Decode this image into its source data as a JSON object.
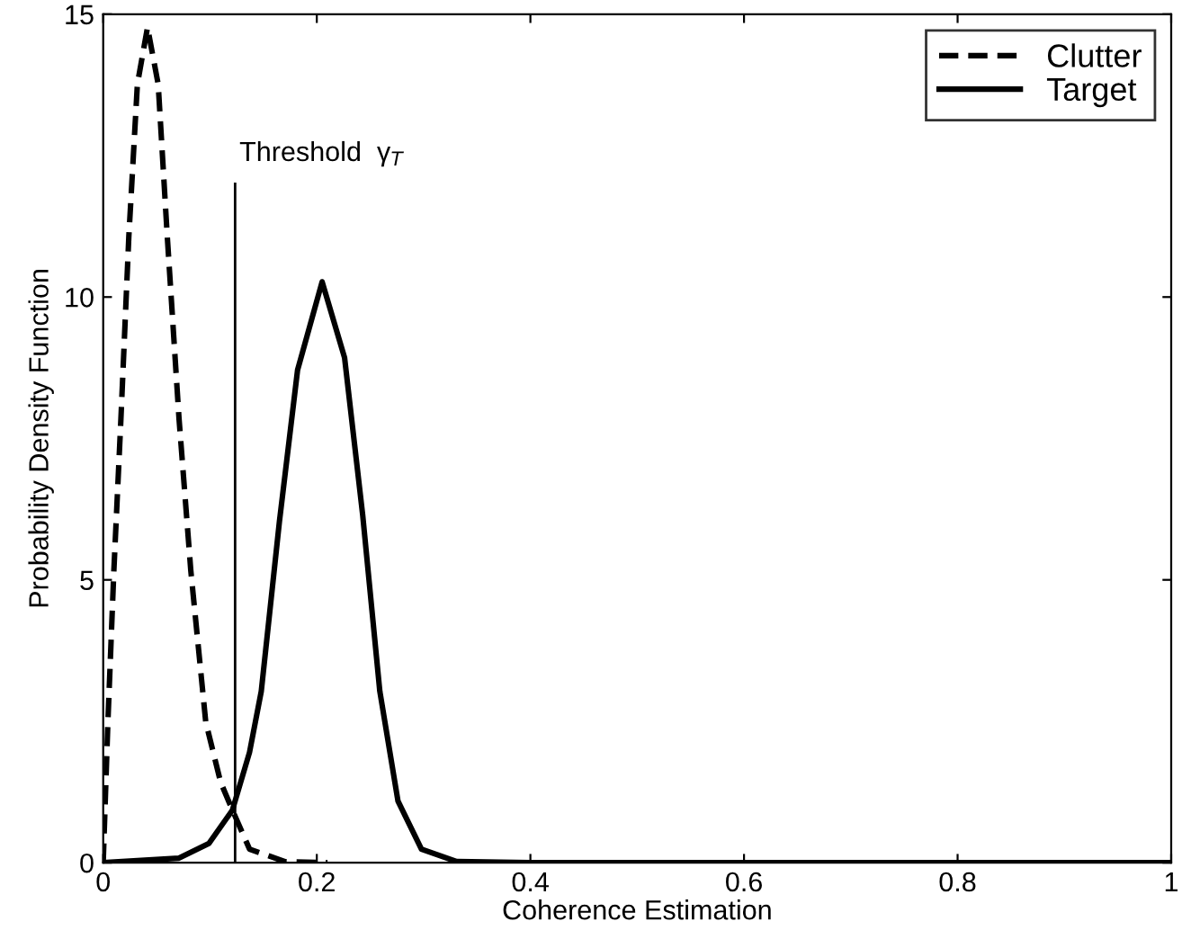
{
  "chart_data": {
    "type": "line",
    "xlabel": "Coherence Estimation",
    "ylabel": "Probability Density Function",
    "xlim": [
      0,
      1
    ],
    "ylim": [
      0,
      15
    ],
    "xticks": [
      0,
      0.2,
      0.4,
      0.6,
      0.8,
      1
    ],
    "yticks": [
      0,
      5,
      10,
      15
    ],
    "grid": false,
    "legend": "top right",
    "marker": "none",
    "series": [
      {
        "name": "Clutter",
        "color": "#000000",
        "line_style": "dashed",
        "x": [
          0,
          0.0044,
          0.01,
          0.0166,
          0.024,
          0.032,
          0.0415,
          0.0515,
          0.06,
          0.071,
          0.082,
          0.096,
          0.11,
          0.121,
          0.137,
          0.17,
          0.21
        ],
        "values": [
          0,
          2.49,
          5.17,
          7.85,
          11.07,
          13.76,
          14.77,
          13.76,
          11.07,
          7.85,
          5.17,
          2.49,
          1.42,
          0.93,
          0.24,
          0.02,
          0
        ]
      },
      {
        "name": "Target",
        "color": "#000000",
        "line_style": "solid",
        "x": [
          0,
          0.071,
          0.099,
          0.121,
          0.137,
          0.148,
          0.165,
          0.182,
          0.205,
          0.226,
          0.243,
          0.259,
          0.276,
          0.298,
          0.331,
          0.4,
          1
        ],
        "values": [
          0,
          0.08,
          0.34,
          0.93,
          1.95,
          3.03,
          6.03,
          8.71,
          10.27,
          8.93,
          6.14,
          3.03,
          1.09,
          0.24,
          0.02,
          0,
          0
        ]
      }
    ],
    "ref_lines": [
      {
        "axis": "x",
        "value": 0.1235,
        "label": "Threshold  γ$_{T}$",
        "color": "#000000",
        "line_style": "solid"
      }
    ]
  }
}
